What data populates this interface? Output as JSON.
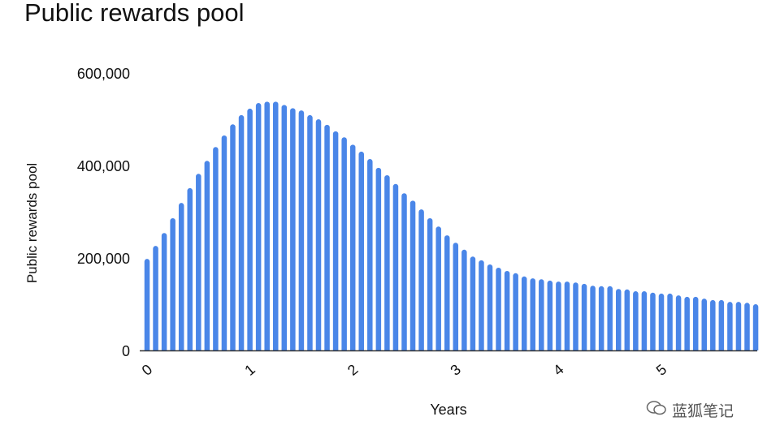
{
  "chart_data": {
    "type": "bar",
    "title": "Public rewards pool",
    "xlabel": "Years",
    "ylabel": "Public rewards pool",
    "ylim": [
      0,
      600000
    ],
    "yticks": [
      "0",
      "200,000",
      "400,000",
      "600,000"
    ],
    "ytick_values": [
      0,
      200000,
      400000,
      600000
    ],
    "xticks": [
      "0",
      "1",
      "2",
      "3",
      "4",
      "5"
    ],
    "xlim": [
      0,
      5.92
    ],
    "bars_per_year": 12,
    "grid": false,
    "color": "#4a86e8",
    "values": [
      198000,
      226000,
      254000,
      286000,
      319000,
      351000,
      382000,
      410000,
      440000,
      465000,
      489000,
      509000,
      523000,
      535000,
      538000,
      538000,
      531000,
      524000,
      519000,
      509000,
      500000,
      488000,
      474000,
      461000,
      445000,
      430000,
      414000,
      395000,
      379000,
      360000,
      340000,
      324000,
      305000,
      286000,
      268000,
      249000,
      233000,
      218000,
      203000,
      195000,
      186000,
      179000,
      172000,
      167000,
      160000,
      156000,
      154000,
      151000,
      149000,
      149000,
      147000,
      144000,
      140000,
      139000,
      139000,
      133000,
      132000,
      128000,
      128000,
      125000,
      123000,
      123000,
      119000,
      116000,
      116000,
      112000,
      109000,
      109000,
      105000,
      105000,
      103000,
      100000
    ]
  },
  "watermark": {
    "text": "蓝狐笔记",
    "icon": "wechat-icon"
  }
}
